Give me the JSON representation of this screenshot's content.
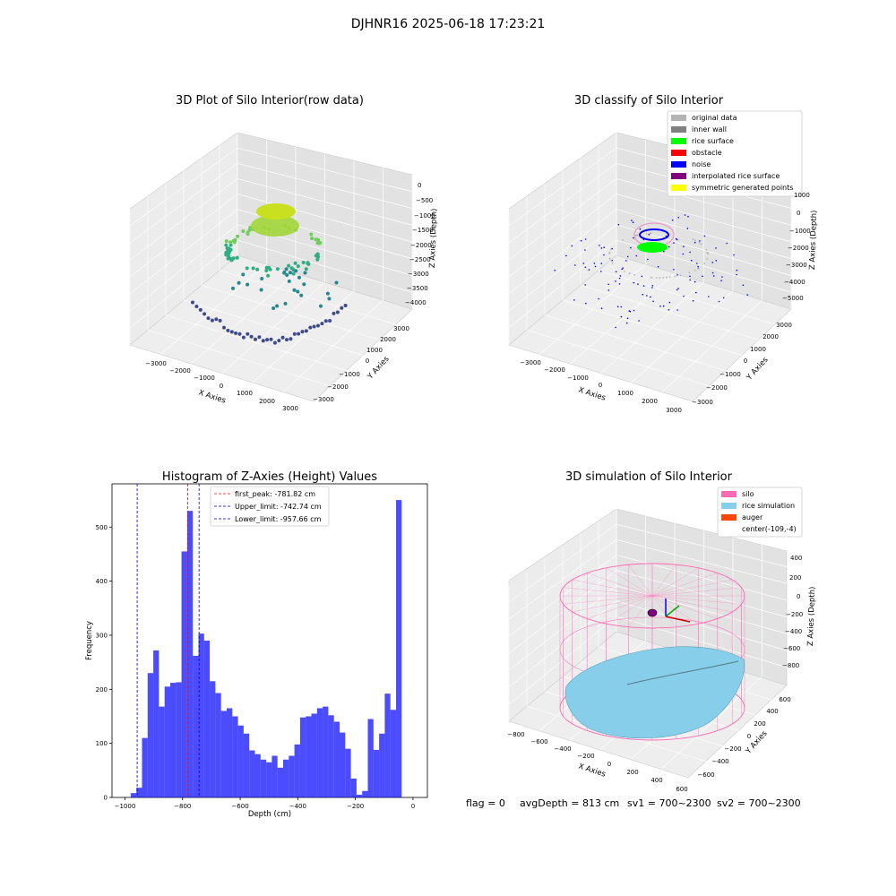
{
  "suptitle": "DJHNR16 2025-06-18 17:23:21",
  "panels": {
    "p1": {
      "title": "3D Plot of Silo Interior(row data)",
      "xlabel": "X Axies",
      "ylabel": "Y Axies",
      "zlabel": "Z Axies (Depth)",
      "xticks": [
        "−3000",
        "−2000",
        "−1000",
        "0",
        "1000",
        "2000",
        "3000"
      ],
      "yticks": [
        "3000",
        "2000",
        "1000",
        "0",
        "−1000",
        "−2000",
        "−3000"
      ],
      "zticks": [
        "0",
        "−500",
        "−1000",
        "−1500",
        "−2000",
        "−2500",
        "−3000",
        "−3500",
        "−4000"
      ]
    },
    "p2": {
      "title": "3D classify of Silo Interior",
      "xlabel": "X Axies",
      "ylabel": "Y Axies",
      "zlabel": "Z Axies (Depth)",
      "xticks": [
        "−3000",
        "−2000",
        "−1000",
        "0",
        "1000",
        "2000",
        "3000"
      ],
      "yticks": [
        "3000",
        "2000",
        "1000",
        "0",
        "−1000",
        "−2000",
        "−3000"
      ],
      "zticks": [
        "1000",
        "0",
        "−1000",
        "−2000",
        "−3000",
        "−4000",
        "−5000"
      ],
      "legend": [
        {
          "label": "original data",
          "color": "#b4b4b4"
        },
        {
          "label": "inner wall",
          "color": "#808080"
        },
        {
          "label": "rice surface",
          "color": "#00ff00"
        },
        {
          "label": "obstacle",
          "color": "#ff0000"
        },
        {
          "label": "noise",
          "color": "#0000ff"
        },
        {
          "label": "interpolated rice surface",
          "color": "#800080"
        },
        {
          "label": "symmetric generated points",
          "color": "#ffff00"
        }
      ]
    },
    "p4": {
      "title": "3D simulation of Silo Interior",
      "xlabel": "X Axies",
      "ylabel": "Y Axies",
      "zlabel": "Z Axies (Depth)",
      "xticks": [
        "−800",
        "−600",
        "−400",
        "−200",
        "0",
        "200",
        "400",
        "600"
      ],
      "yticks": [
        "600",
        "400",
        "200",
        "0",
        "−200",
        "−400",
        "−600"
      ],
      "zticks": [
        "400",
        "200",
        "0",
        "−200",
        "−400",
        "−600",
        "−800"
      ],
      "legend": [
        {
          "label": "silo",
          "color": "#ff69b4"
        },
        {
          "label": "rice simulation",
          "color": "#87ceeb"
        },
        {
          "label": "auger",
          "color": "#ff4500"
        },
        {
          "label": "center(-109,-4)",
          "color": ""
        }
      ]
    }
  },
  "chart_data": [
    {
      "type": "bar",
      "title": "Histogram of Z-Axies (Height) Values",
      "xlabel": "Depth (cm)",
      "ylabel": "Frequency",
      "bar_color": "#0000ff",
      "xlim": [
        -1045,
        50
      ],
      "ylim": [
        0,
        580
      ],
      "xticks": [
        -1000,
        -800,
        -600,
        -400,
        -200,
        0
      ],
      "xtick_labels": [
        "−1000",
        "−800",
        "−600",
        "−400",
        "−200",
        "0"
      ],
      "yticks": [
        0,
        100,
        200,
        300,
        400,
        500
      ],
      "bin_start": -980,
      "bin_width": 19.6,
      "values": [
        8,
        18,
        110,
        230,
        272,
        168,
        205,
        212,
        213,
        455,
        530,
        262,
        303,
        290,
        215,
        193,
        160,
        165,
        150,
        133,
        118,
        87,
        80,
        70,
        65,
        77,
        55,
        70,
        77,
        98,
        148,
        150,
        155,
        165,
        168,
        152,
        140,
        120,
        90,
        35,
        5,
        12,
        145,
        88,
        118,
        192,
        162,
        550
      ],
      "lines": [
        {
          "label": "first_peak: -781.82 cm",
          "x": -781.82,
          "color": "#ff0000"
        },
        {
          "label": "Upper_limit: -742.74 cm",
          "x": -742.74,
          "color": "#0000cc"
        },
        {
          "label": "Lower_limit: -957.66 cm",
          "x": -957.66,
          "color": "#0000cc"
        }
      ]
    }
  ],
  "footer": {
    "flag": "flag = 0",
    "avg": "avgDepth = 813 cm",
    "sv1": "sv1 = 700~2300",
    "sv2": "sv2 = 700~2300"
  }
}
